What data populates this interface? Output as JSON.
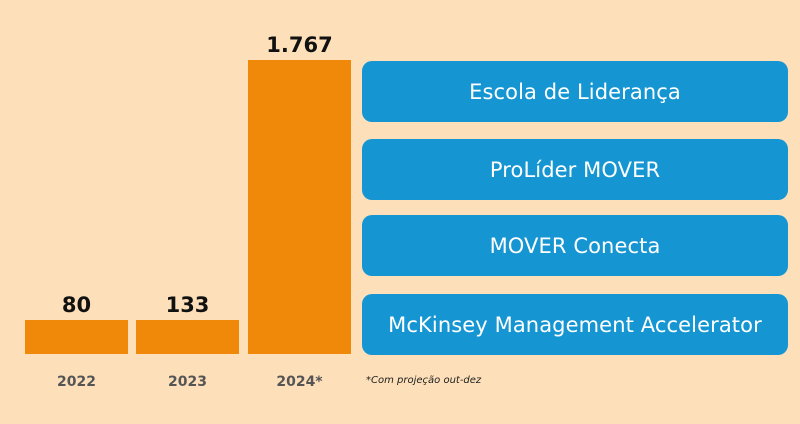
{
  "colors": {
    "background": "#fde0b9",
    "bar": "#f0890a",
    "pill": "#1596d2",
    "value_text": "#111111",
    "year_text": "#555555"
  },
  "chart_data": {
    "type": "bar",
    "categories": [
      "2022",
      "2023",
      "2024*"
    ],
    "values": [
      80,
      133,
      1767
    ],
    "value_labels": [
      "80",
      "133",
      "1.767"
    ],
    "ylim": [
      0,
      1767
    ],
    "grid": false,
    "title": "",
    "xlabel": "",
    "ylabel": ""
  },
  "programs": [
    "Escola de Liderança",
    "ProLíder MOVER",
    "MOVER Conecta",
    "McKinsey Management Accelerator"
  ],
  "footnote": "*Com projeção out-dez"
}
